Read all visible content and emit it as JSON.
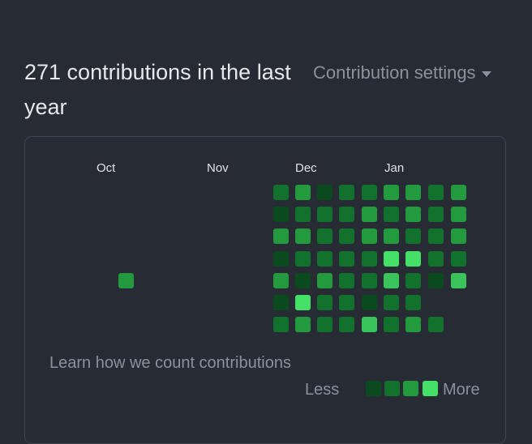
{
  "header": {
    "title": "271 contributions in the last year",
    "settings_label": "Contribution settings",
    "settings_icon": "caret-down-icon"
  },
  "graph": {
    "months": [
      "Oct",
      "Nov",
      "Dec",
      "Jan"
    ],
    "colors": [
      "#0b4a1e",
      "#13712e",
      "#239a3e",
      "#3ac35b",
      "#45e068"
    ],
    "note": "Each week column lists contribution levels 0-4 for Sun..Sat; null = no cell",
    "weeks": [
      [
        null,
        null,
        null,
        null,
        2,
        null,
        null
      ],
      [
        1,
        0,
        2,
        0,
        2,
        0,
        1
      ],
      [
        2,
        1,
        2,
        1,
        0,
        4,
        2
      ],
      [
        0,
        1,
        1,
        1,
        2,
        1,
        1
      ],
      [
        1,
        1,
        1,
        1,
        1,
        1,
        1
      ],
      [
        1,
        2,
        2,
        1,
        1,
        0,
        3
      ],
      [
        2,
        1,
        2,
        4,
        3,
        1,
        1
      ],
      [
        2,
        2,
        1,
        4,
        1,
        1,
        2
      ],
      [
        1,
        1,
        1,
        1,
        0,
        null,
        1
      ],
      [
        2,
        2,
        2,
        1,
        3,
        null,
        null
      ]
    ]
  },
  "footer": {
    "learn_link": "Learn how we count contributions",
    "legend_less": "Less",
    "legend_more": "More"
  }
}
